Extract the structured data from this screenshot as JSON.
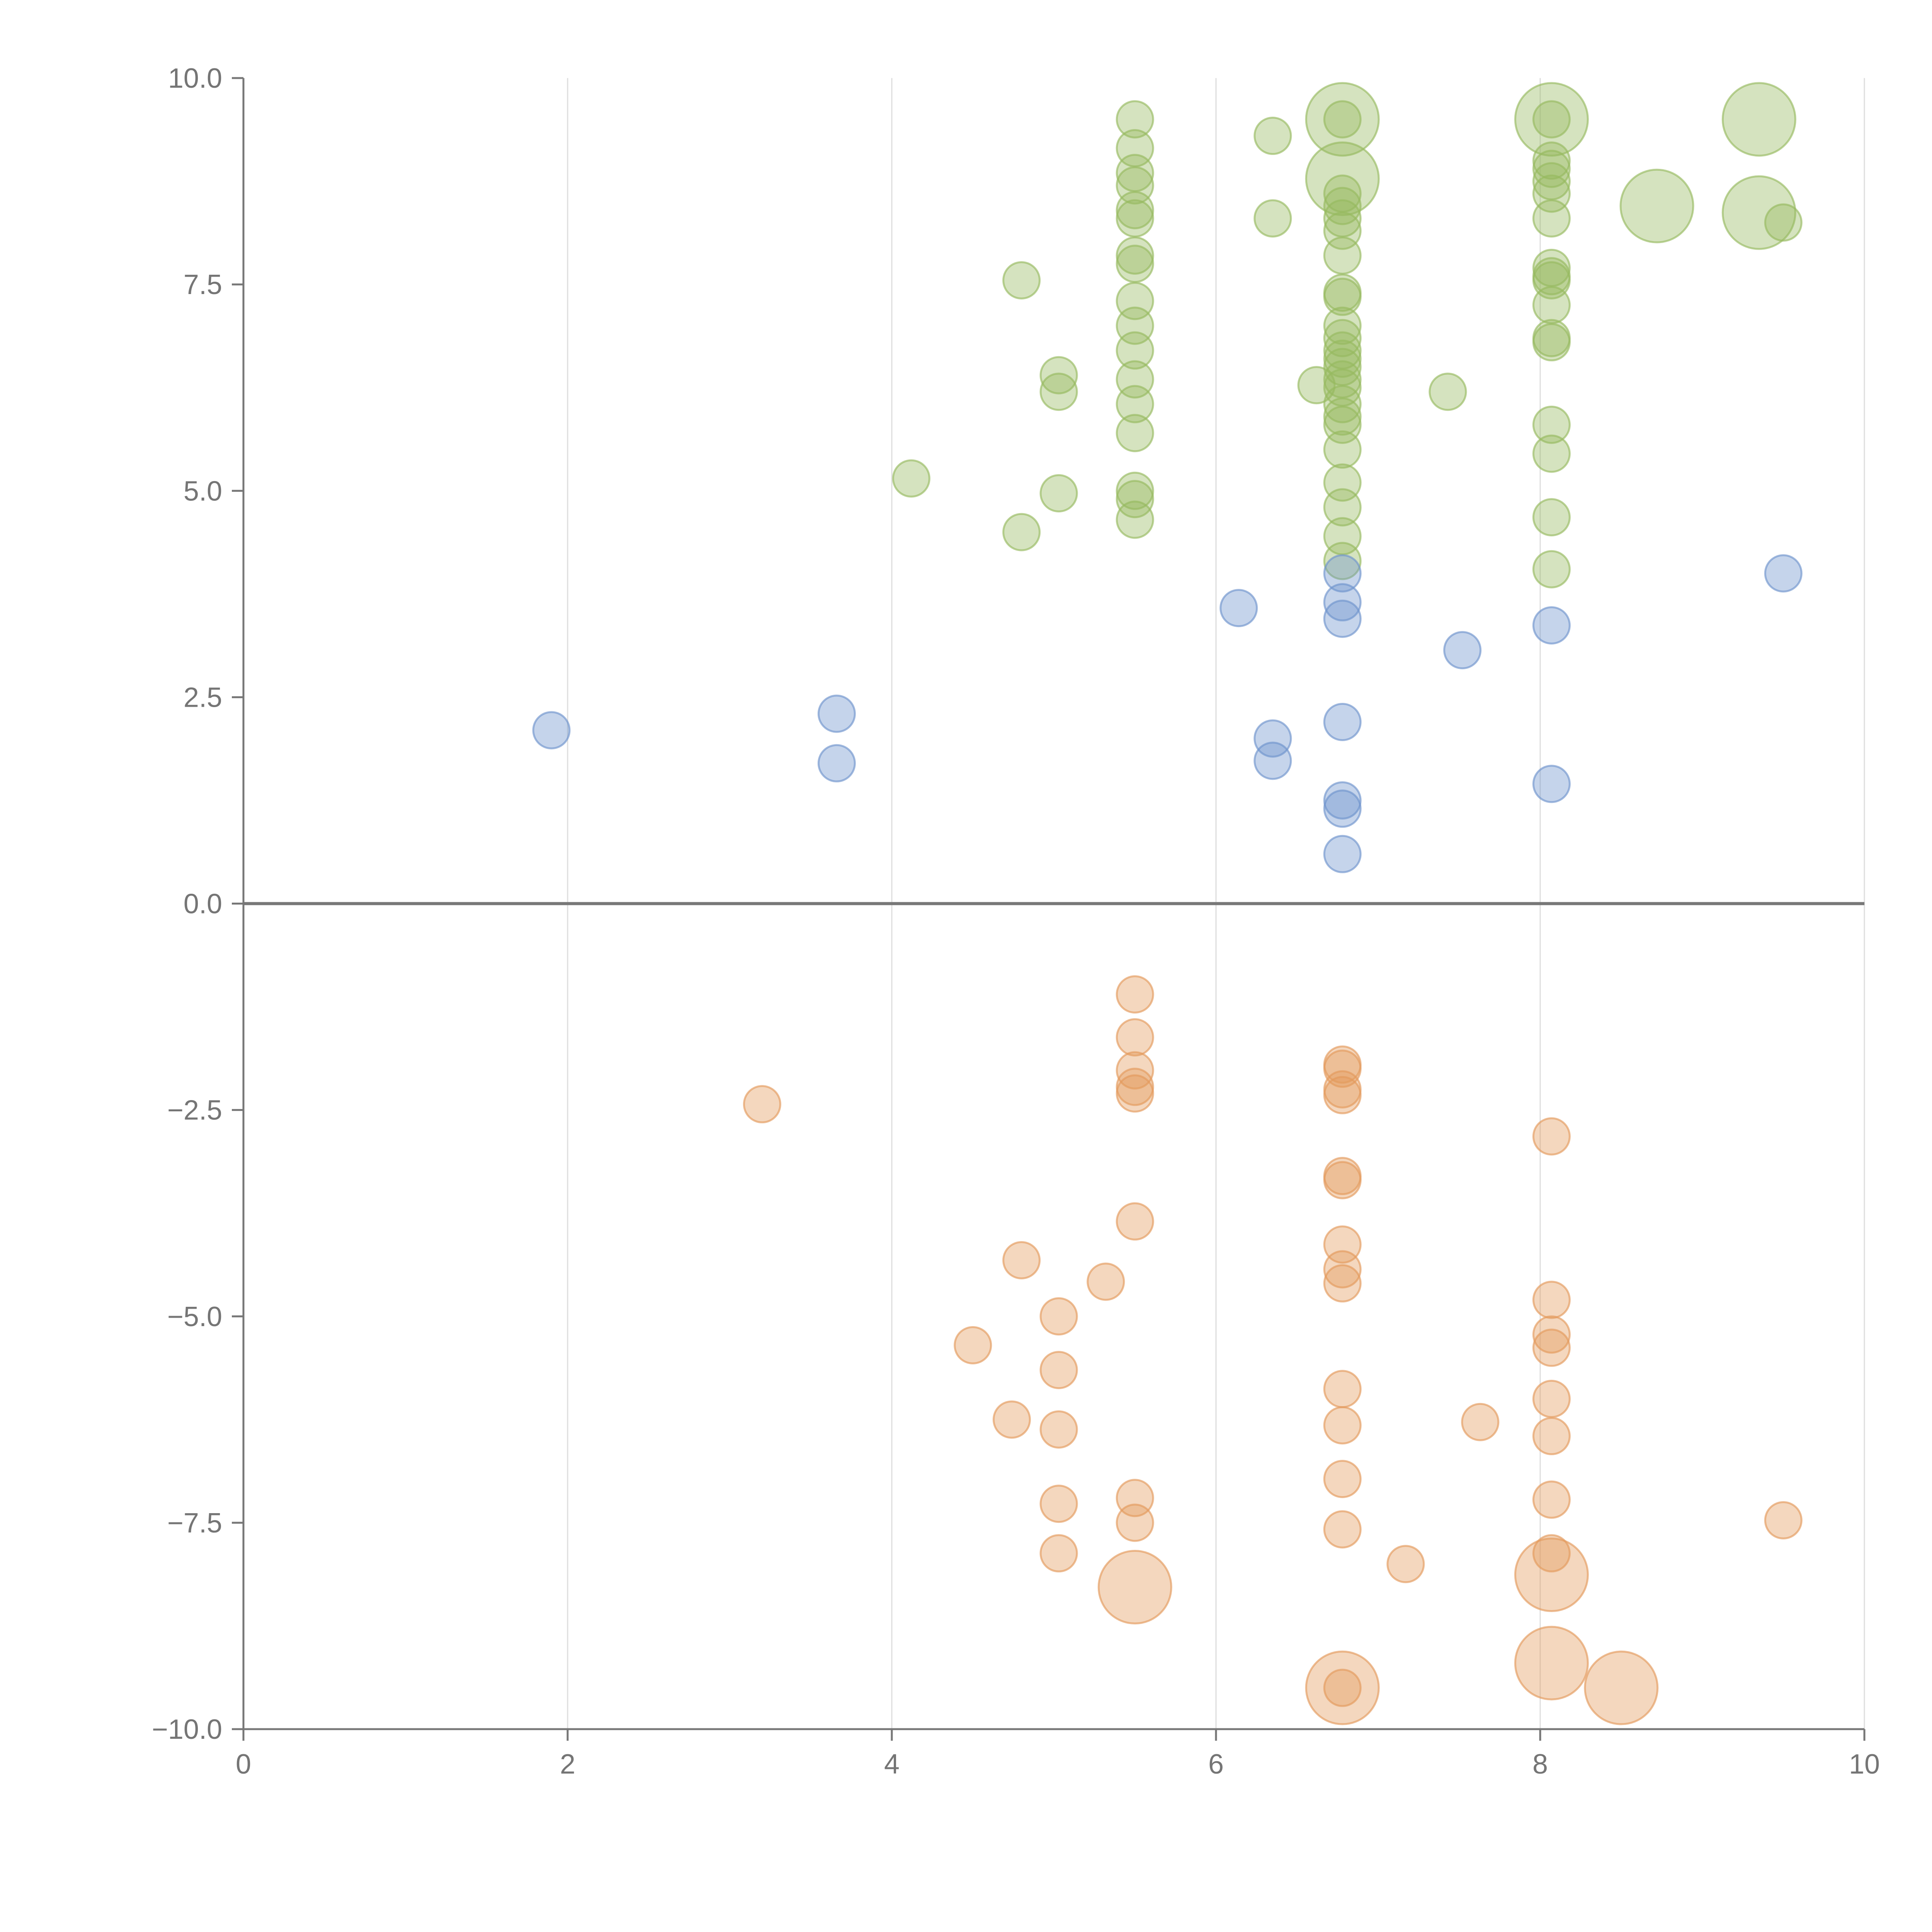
{
  "chart_data": {
    "type": "scatter",
    "title": "",
    "xlabel": "",
    "ylabel": "",
    "xlim": [
      0,
      10
    ],
    "ylim": [
      -10,
      10
    ],
    "grid": "vertical",
    "legend": "none",
    "x_ticks": [
      "0",
      "2",
      "4",
      "6",
      "8",
      "10"
    ],
    "y_ticks": [
      "10.0",
      "7.5",
      "5.0",
      "2.5",
      "0.0",
      "−2.5",
      "−5.0",
      "−7.5",
      "−10.0"
    ],
    "colors": {
      "green": "#97ba5f",
      "blue": "#6f94cc",
      "orange": "#e49a5c",
      "axis": "#777777",
      "grid": "#dddddd",
      "zero_line": "#777777"
    },
    "series": [
      {
        "color": "green",
        "points": [
          [
            5.5,
            9.5,
            1
          ],
          [
            5.5,
            9.15,
            1
          ],
          [
            5.5,
            8.85,
            1
          ],
          [
            5.5,
            8.7,
            1
          ],
          [
            5.5,
            8.4,
            1
          ],
          [
            5.5,
            8.3,
            1
          ],
          [
            5.5,
            7.85,
            1
          ],
          [
            5.5,
            7.75,
            1
          ],
          [
            5.5,
            7.3,
            1
          ],
          [
            5.5,
            7.0,
            1
          ],
          [
            5.5,
            6.7,
            1
          ],
          [
            5.5,
            6.35,
            1
          ],
          [
            5.5,
            6.05,
            1
          ],
          [
            5.5,
            5.7,
            1
          ],
          [
            5.5,
            5.0,
            1
          ],
          [
            5.5,
            4.9,
            1
          ],
          [
            5.5,
            4.65,
            1
          ],
          [
            6.35,
            9.3,
            1
          ],
          [
            6.35,
            8.3,
            1
          ],
          [
            4.8,
            7.55,
            1
          ],
          [
            5.03,
            6.4,
            1
          ],
          [
            5.03,
            6.2,
            1
          ],
          [
            4.12,
            5.15,
            1
          ],
          [
            5.03,
            4.97,
            1
          ],
          [
            4.8,
            4.5,
            1
          ],
          [
            6.62,
            6.28,
            1
          ],
          [
            7.43,
            6.2,
            1
          ],
          [
            6.78,
            9.5,
            3
          ],
          [
            6.78,
            9.5,
            1
          ],
          [
            6.78,
            8.78,
            3
          ],
          [
            6.78,
            8.6,
            1
          ],
          [
            6.78,
            8.45,
            1
          ],
          [
            6.78,
            8.3,
            1
          ],
          [
            6.78,
            8.15,
            1
          ],
          [
            6.78,
            7.85,
            1
          ],
          [
            6.78,
            7.4,
            1
          ],
          [
            6.78,
            7.35,
            1
          ],
          [
            6.78,
            7.0,
            1
          ],
          [
            6.78,
            6.85,
            1
          ],
          [
            6.78,
            6.7,
            1
          ],
          [
            6.78,
            6.6,
            1
          ],
          [
            6.78,
            6.5,
            1
          ],
          [
            6.78,
            6.35,
            1
          ],
          [
            6.78,
            6.25,
            1
          ],
          [
            6.78,
            6.05,
            1
          ],
          [
            6.78,
            5.9,
            1
          ],
          [
            6.78,
            5.8,
            1
          ],
          [
            6.78,
            5.5,
            1
          ],
          [
            6.78,
            5.1,
            1
          ],
          [
            6.78,
            4.8,
            1
          ],
          [
            6.78,
            4.45,
            1
          ],
          [
            6.78,
            4.15,
            1
          ],
          [
            8.07,
            9.5,
            3
          ],
          [
            8.07,
            9.5,
            1
          ],
          [
            8.07,
            9.0,
            1
          ],
          [
            8.07,
            8.9,
            1
          ],
          [
            8.07,
            8.75,
            1
          ],
          [
            8.07,
            8.6,
            1
          ],
          [
            8.07,
            8.3,
            1
          ],
          [
            8.07,
            7.7,
            1
          ],
          [
            8.07,
            7.6,
            1
          ],
          [
            8.07,
            7.55,
            1
          ],
          [
            8.07,
            7.25,
            1
          ],
          [
            8.07,
            6.85,
            1
          ],
          [
            8.07,
            6.8,
            1
          ],
          [
            8.07,
            5.8,
            1
          ],
          [
            8.07,
            5.45,
            1
          ],
          [
            8.07,
            4.68,
            1
          ],
          [
            8.07,
            4.05,
            1
          ],
          [
            8.72,
            8.45,
            3
          ],
          [
            9.35,
            9.5,
            3
          ],
          [
            9.35,
            8.37,
            3
          ],
          [
            9.5,
            8.25,
            1
          ]
        ]
      },
      {
        "color": "blue",
        "points": [
          [
            1.9,
            2.1,
            1
          ],
          [
            3.66,
            2.3,
            1
          ],
          [
            3.66,
            1.7,
            1
          ],
          [
            6.14,
            3.58,
            1
          ],
          [
            6.35,
            2.0,
            1
          ],
          [
            6.35,
            1.73,
            1
          ],
          [
            6.78,
            4.0,
            1
          ],
          [
            6.78,
            3.65,
            1
          ],
          [
            6.78,
            3.45,
            1
          ],
          [
            6.78,
            2.2,
            1
          ],
          [
            6.78,
            1.25,
            1
          ],
          [
            6.78,
            1.15,
            1
          ],
          [
            6.78,
            0.6,
            1
          ],
          [
            7.52,
            3.07,
            1
          ],
          [
            8.07,
            3.37,
            1
          ],
          [
            8.07,
            1.45,
            1
          ],
          [
            9.5,
            4.0,
            1
          ]
        ]
      },
      {
        "color": "orange",
        "points": [
          [
            3.2,
            -2.43,
            1
          ],
          [
            5.5,
            -1.1,
            1
          ],
          [
            5.5,
            -1.62,
            1
          ],
          [
            5.5,
            -2.02,
            1
          ],
          [
            5.5,
            -2.22,
            1
          ],
          [
            5.5,
            -2.3,
            1
          ],
          [
            5.5,
            -3.85,
            1
          ],
          [
            5.5,
            -7.2,
            1
          ],
          [
            5.5,
            -7.5,
            1
          ],
          [
            5.5,
            -8.28,
            3
          ],
          [
            4.8,
            -4.32,
            1
          ],
          [
            5.32,
            -4.58,
            1
          ],
          [
            5.03,
            -5.0,
            1
          ],
          [
            4.5,
            -5.35,
            1
          ],
          [
            5.03,
            -5.65,
            1
          ],
          [
            4.74,
            -6.25,
            1
          ],
          [
            5.03,
            -6.37,
            1
          ],
          [
            5.03,
            -7.27,
            1
          ],
          [
            5.03,
            -7.87,
            1
          ],
          [
            6.78,
            -1.95,
            1
          ],
          [
            6.78,
            -2.0,
            1
          ],
          [
            6.78,
            -2.25,
            1
          ],
          [
            6.78,
            -2.32,
            1
          ],
          [
            6.78,
            -3.3,
            1
          ],
          [
            6.78,
            -3.35,
            1
          ],
          [
            6.78,
            -4.13,
            1
          ],
          [
            6.78,
            -4.43,
            1
          ],
          [
            6.78,
            -4.6,
            1
          ],
          [
            6.78,
            -5.88,
            1
          ],
          [
            6.78,
            -6.32,
            1
          ],
          [
            6.78,
            -6.97,
            1
          ],
          [
            6.78,
            -7.58,
            1
          ],
          [
            6.78,
            -9.5,
            3
          ],
          [
            6.78,
            -9.5,
            1
          ],
          [
            7.17,
            -8.0,
            1
          ],
          [
            7.63,
            -6.28,
            1
          ],
          [
            8.07,
            -2.82,
            1
          ],
          [
            8.07,
            -4.8,
            1
          ],
          [
            8.07,
            -5.22,
            1
          ],
          [
            8.07,
            -5.38,
            1
          ],
          [
            8.07,
            -6.0,
            1
          ],
          [
            8.07,
            -6.45,
            1
          ],
          [
            8.07,
            -7.22,
            1
          ],
          [
            8.07,
            -7.87,
            1
          ],
          [
            8.07,
            -8.13,
            3
          ],
          [
            8.07,
            -9.2,
            3
          ],
          [
            8.5,
            -9.5,
            3
          ],
          [
            9.5,
            -7.47,
            1
          ]
        ]
      }
    ]
  }
}
